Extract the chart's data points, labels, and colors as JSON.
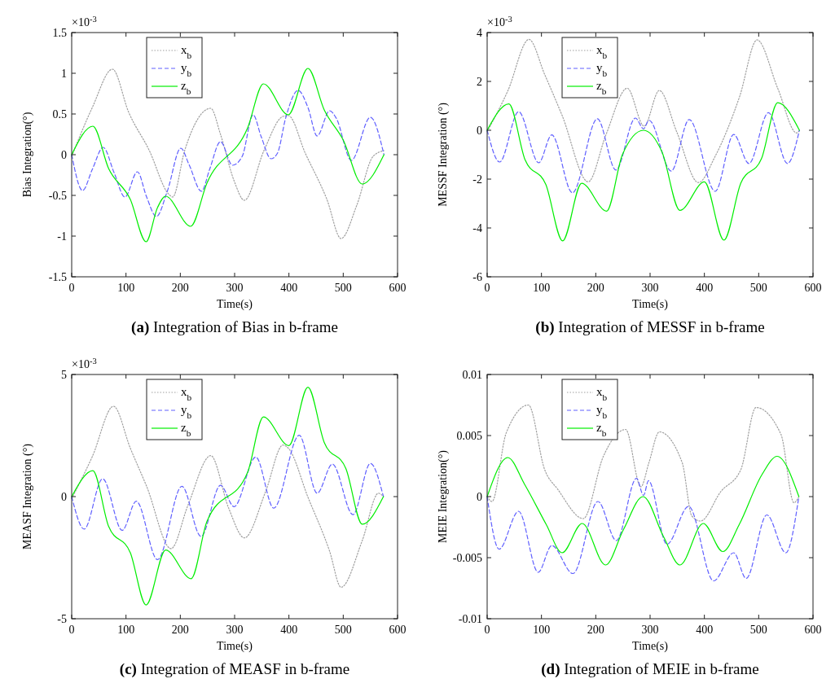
{
  "chart_data": [
    {
      "type": "line",
      "title": "(a) Integration of Bias in b-frame",
      "xlabel": "Time(s)",
      "ylabel": "Bias Integration(°)",
      "annotations": [
        "×10$^{-3}$"
      ],
      "xlim": [
        0,
        600
      ],
      "xticks": [
        0,
        100,
        200,
        300,
        400,
        500,
        600
      ],
      "ylim": [
        -1.5,
        1.5
      ],
      "yticks": [
        -1.5,
        -1,
        -0.5,
        0,
        0.5,
        1,
        1.5
      ],
      "legend": "top left",
      "grid": false,
      "series": [
        {
          "name": "x$_{b}$",
          "color": "#a0a0a0",
          "line_style": "dotted",
          "x": [
            0,
            38,
            75,
            105,
            143,
            178,
            186,
            208,
            256,
            274,
            299,
            318,
            354,
            389,
            399,
            430,
            470,
            496,
            525,
            555,
            575
          ],
          "values": [
            -0.02,
            0.58,
            1.05,
            0.52,
            0.05,
            -0.48,
            -0.52,
            0.05,
            0.57,
            0.25,
            -0.32,
            -0.56,
            0.05,
            0.47,
            0.48,
            0.02,
            -0.55,
            -1.03,
            -0.62,
            -0.02,
            0.05
          ]
        },
        {
          "name": "y$_{b}$",
          "color": "#6060ff",
          "line_style": "dashed",
          "x": [
            0,
            20,
            38,
            58,
            78,
            98,
            121,
            138,
            156,
            176,
            201,
            216,
            239,
            254,
            274,
            296,
            314,
            334,
            349,
            367,
            379,
            394,
            417,
            435,
            452,
            475,
            487,
            515,
            550,
            575
          ],
          "values": [
            0,
            -0.44,
            -0.18,
            0.09,
            -0.22,
            -0.52,
            -0.21,
            -0.52,
            -0.76,
            -0.45,
            0.08,
            -0.12,
            -0.45,
            -0.18,
            0.16,
            -0.13,
            -0.02,
            0.49,
            0.22,
            -0.05,
            0.02,
            0.45,
            0.79,
            0.58,
            0.23,
            0.54,
            0.45,
            -0.07,
            0.46,
            0
          ]
        },
        {
          "name": "z$_{b}$",
          "color": "#00ee00",
          "line_style": "solid",
          "x": [
            0,
            39,
            68,
            108,
            137,
            158,
            173,
            219,
            249,
            324,
            353,
            399,
            435,
            465,
            500,
            535,
            575
          ],
          "values": [
            0,
            0.35,
            -0.17,
            -0.55,
            -1.07,
            -0.65,
            -0.51,
            -0.88,
            -0.35,
            0.33,
            0.87,
            0.49,
            1.06,
            0.55,
            0.18,
            -0.36,
            0
          ]
        }
      ]
    },
    {
      "type": "line",
      "title": "(b) Integration of MESSF in b-frame",
      "xlabel": "Time(s)",
      "ylabel": "MESSF Integration (°)",
      "annotations": [
        "×10$^{-3}$"
      ],
      "xlim": [
        0,
        600
      ],
      "xticks": [
        0,
        100,
        200,
        300,
        400,
        500,
        600
      ],
      "ylim": [
        -6,
        4
      ],
      "yticks": [
        -6,
        -4,
        -2,
        0,
        2,
        4
      ],
      "legend": "top left",
      "grid": false,
      "series": [
        {
          "name": "x$_{b}$",
          "color": "#a0a0a0",
          "line_style": "dotted",
          "x": [
            0,
            38,
            77,
            106,
            138,
            186,
            219,
            258,
            289,
            317,
            349,
            389,
            420,
            465,
            497,
            535,
            570,
            575
          ],
          "values": [
            -0.06,
            1.61,
            3.72,
            2.28,
            0.61,
            -2.11,
            -0.17,
            1.72,
            0.17,
            1.63,
            -0.06,
            -2.14,
            -1.06,
            1.39,
            3.7,
            1.72,
            -0.11,
            0
          ]
        },
        {
          "name": "y$_{b}$",
          "color": "#6060ff",
          "line_style": "dashed",
          "x": [
            0,
            23,
            58,
            95,
            119,
            157,
            203,
            237,
            273,
            288,
            298,
            339,
            372,
            420,
            454,
            482,
            518,
            553,
            575
          ],
          "values": [
            0,
            -1.3,
            0.76,
            -1.33,
            -0.19,
            -2.56,
            0.47,
            -1.63,
            0.5,
            0.06,
            0.41,
            -1.67,
            0.44,
            -2.5,
            -0.17,
            -1.36,
            0.72,
            -1.36,
            0
          ]
        },
        {
          "name": "z$_{b}$",
          "color": "#00ee00",
          "line_style": "solid",
          "x": [
            0,
            40,
            70,
            108,
            139,
            174,
            220,
            249,
            288,
            322,
            355,
            400,
            436,
            467,
            505,
            535,
            575
          ],
          "values": [
            0,
            1.08,
            -1.22,
            -2.22,
            -4.53,
            -2.17,
            -3.31,
            -1,
            0,
            -0.89,
            -3.28,
            -2.11,
            -4.5,
            -2.17,
            -1.17,
            1.13,
            0
          ]
        }
      ]
    },
    {
      "type": "line",
      "title": "(c) Integration of MEASF in b-frame",
      "xlabel": "Time(s)",
      "ylabel": "MEASF Integration (°)",
      "annotations": [
        "×10$^{-3}$"
      ],
      "xlim": [
        0,
        600
      ],
      "xticks": [
        0,
        100,
        200,
        300,
        400,
        500,
        600
      ],
      "ylim": [
        -5,
        5
      ],
      "yticks": [
        -5,
        0,
        5
      ],
      "legend": "top left",
      "grid": false,
      "series": [
        {
          "name": "x$_{b}$",
          "color": "#a0a0a0",
          "line_style": "dotted",
          "x": [
            0,
            38,
            77,
            108,
            138,
            183,
            214,
            256,
            289,
            318,
            357,
            389,
            399,
            435,
            475,
            496,
            535,
            565,
            574
          ],
          "values": [
            -0.08,
            1.64,
            3.7,
            1.98,
            0.42,
            -2.13,
            -0.36,
            1.68,
            -0.47,
            -1.69,
            0.2,
            2.11,
            1.98,
            -0.02,
            -2.24,
            -3.71,
            -1.8,
            0.14,
            0
          ]
        },
        {
          "name": "y$_{b}$",
          "color": "#6060ff",
          "line_style": "dashed",
          "x": [
            0,
            23,
            57,
            93,
            119,
            158,
            203,
            238,
            274,
            299,
            339,
            372,
            419,
            452,
            480,
            518,
            550,
            574
          ],
          "values": [
            0,
            -1.33,
            0.73,
            -1.38,
            -0.19,
            -2.58,
            0.42,
            -1.63,
            0.46,
            -0.41,
            1.62,
            -0.47,
            2.51,
            0.14,
            1.33,
            -0.74,
            1.36,
            0
          ]
        },
        {
          "name": "z$_{b}$",
          "color": "#00ee00",
          "line_style": "solid",
          "x": [
            0,
            39,
            68,
            108,
            137,
            173,
            220,
            249,
            324,
            353,
            400,
            435,
            465,
            505,
            535,
            574
          ],
          "values": [
            0,
            1.06,
            -1.22,
            -2.3,
            -4.44,
            -2.19,
            -3.36,
            -1.02,
            1,
            3.26,
            2.09,
            4.48,
            2.22,
            1.14,
            -1.13,
            0
          ]
        }
      ]
    },
    {
      "type": "line",
      "title": "(d) Integration of MEIE in b-frame",
      "xlabel": "Time(s)",
      "ylabel": "MEIE Integration(°)",
      "xlim": [
        0,
        600
      ],
      "xticks": [
        0,
        100,
        200,
        300,
        400,
        500,
        600
      ],
      "ylim": [
        -0.01,
        0.01
      ],
      "yticks": [
        -0.01,
        -0.005,
        0,
        0.005,
        0.01
      ],
      "legend": "top left",
      "grid": false,
      "series": [
        {
          "name": "x$_{b}$",
          "color": "#a0a0a0",
          "line_style": "dotted",
          "x": [
            0,
            9,
            35,
            76,
            106,
            130,
            177,
            214,
            255,
            283,
            298,
            317,
            359,
            377,
            393,
            430,
            467,
            495,
            541,
            565,
            574
          ],
          "values": [
            0,
            -0.0004,
            0.0052,
            0.0075,
            0.0022,
            0.0006,
            -0.0018,
            0.0033,
            0.0055,
            0.0008,
            0.0028,
            0.0053,
            0.0028,
            -0.0016,
            -0.002,
            0.0004,
            0.0022,
            0.0073,
            0.0051,
            -0.0005,
            0
          ]
        },
        {
          "name": "y$_{b}$",
          "color": "#6060ff",
          "line_style": "dashed",
          "x": [
            0,
            22,
            58,
            94,
            119,
            158,
            204,
            238,
            275,
            288,
            297,
            331,
            371,
            417,
            454,
            477,
            515,
            550,
            574
          ],
          "values": [
            0,
            -0.0043,
            -0.0012,
            -0.0062,
            -0.004,
            -0.0063,
            -0.0004,
            -0.0036,
            0.0015,
            0.0001,
            0.0013,
            -0.0039,
            -0.0008,
            -0.0069,
            -0.0046,
            -0.0067,
            -0.0015,
            -0.0046,
            0
          ]
        },
        {
          "name": "z$_{b}$",
          "color": "#00ee00",
          "line_style": "solid",
          "x": [
            0,
            38,
            69,
            109,
            138,
            175,
            218,
            251,
            287,
            325,
            355,
            398,
            434,
            464,
            506,
            534,
            574
          ],
          "values": [
            0,
            0.0032,
            0.001,
            -0.0023,
            -0.0046,
            -0.0022,
            -0.0056,
            -0.0027,
            0,
            -0.0033,
            -0.0056,
            -0.0022,
            -0.0045,
            -0.0023,
            0.0018,
            0.0033,
            0
          ]
        }
      ]
    }
  ]
}
